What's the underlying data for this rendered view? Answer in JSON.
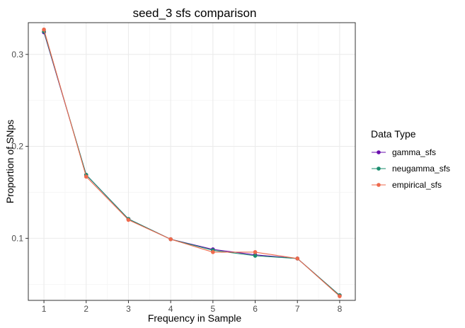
{
  "chart_data": {
    "type": "line",
    "title": "seed_3 sfs comparison",
    "xlabel": "Frequency in Sample",
    "ylabel": "Proportion of SNps",
    "x": [
      1,
      2,
      3,
      4,
      5,
      6,
      7,
      8
    ],
    "xlim": [
      0.63,
      8.37
    ],
    "ylim": [
      0.0325,
      0.3345
    ],
    "y_ticks": [
      0.1,
      0.2,
      0.3
    ],
    "y_tick_labels": [
      "0.1",
      "0.2",
      "0.3"
    ],
    "x_ticks": [
      1,
      2,
      3,
      4,
      5,
      6,
      7,
      8
    ],
    "x_tick_labels": [
      "1",
      "2",
      "3",
      "4",
      "5",
      "6",
      "7",
      "8"
    ],
    "grid": true,
    "legend": {
      "title": "Data Type",
      "position": "right"
    },
    "series": [
      {
        "name": "gamma_sfs",
        "color": "#6a0dad",
        "values": [
          0.324,
          0.169,
          0.121,
          0.099,
          0.088,
          0.082,
          0.078,
          0.038
        ]
      },
      {
        "name": "neugamma_sfs",
        "color": "#1a8c6e",
        "values": [
          0.325,
          0.169,
          0.121,
          0.099,
          0.087,
          0.081,
          0.078,
          0.038
        ]
      },
      {
        "name": "empirical_sfs",
        "color": "#ee6a4d",
        "values": [
          0.327,
          0.167,
          0.12,
          0.099,
          0.085,
          0.085,
          0.078,
          0.037
        ]
      }
    ]
  }
}
